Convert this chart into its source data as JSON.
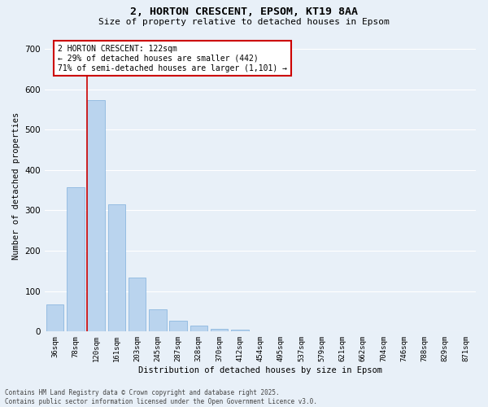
{
  "title_line1": "2, HORTON CRESCENT, EPSOM, KT19 8AA",
  "title_line2": "Size of property relative to detached houses in Epsom",
  "xlabel": "Distribution of detached houses by size in Epsom",
  "ylabel": "Number of detached properties",
  "categories": [
    "36sqm",
    "78sqm",
    "120sqm",
    "161sqm",
    "203sqm",
    "245sqm",
    "287sqm",
    "328sqm",
    "370sqm",
    "412sqm",
    "454sqm",
    "495sqm",
    "537sqm",
    "579sqm",
    "621sqm",
    "662sqm",
    "704sqm",
    "746sqm",
    "788sqm",
    "829sqm",
    "871sqm"
  ],
  "values": [
    68,
    357,
    572,
    315,
    133,
    55,
    27,
    14,
    6,
    4,
    0,
    0,
    0,
    0,
    0,
    0,
    0,
    0,
    0,
    0,
    0
  ],
  "bar_color": "#bad4ee",
  "bar_edge_color": "#8db8e0",
  "vline_x_index": 2,
  "annotation_text": "2 HORTON CRESCENT: 122sqm\n← 29% of detached houses are smaller (442)\n71% of semi-detached houses are larger (1,101) →",
  "annotation_box_color": "#ffffff",
  "annotation_box_edge": "#cc0000",
  "vline_color": "#cc0000",
  "ylim": [
    0,
    720
  ],
  "yticks": [
    0,
    100,
    200,
    300,
    400,
    500,
    600,
    700
  ],
  "bg_color": "#e8f0f8",
  "grid_color": "#ffffff",
  "footer": "Contains HM Land Registry data © Crown copyright and database right 2025.\nContains public sector information licensed under the Open Government Licence v3.0."
}
